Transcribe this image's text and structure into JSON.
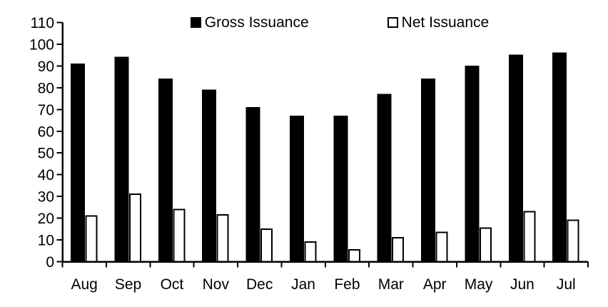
{
  "chart_data": {
    "type": "bar",
    "categories": [
      "Aug",
      "Sep",
      "Oct",
      "Nov",
      "Dec",
      "Jan",
      "Feb",
      "Mar",
      "Apr",
      "May",
      "Jun",
      "Jul"
    ],
    "series": [
      {
        "name": "Gross Issuance",
        "color": "#000000",
        "border": "#000000",
        "values": [
          91,
          94,
          84,
          79,
          71,
          67,
          67,
          77,
          84,
          90,
          95,
          96
        ]
      },
      {
        "name": "Net Issuance",
        "color": "#ffffff",
        "border": "#000000",
        "values": [
          21,
          31,
          24,
          21.5,
          15,
          9,
          5.5,
          11,
          13.5,
          15.5,
          23,
          19
        ]
      }
    ],
    "xlabel": "",
    "ylabel": "",
    "ylim": [
      0,
      110
    ],
    "ytick_step": 10,
    "yticks": [
      0,
      10,
      20,
      30,
      40,
      50,
      60,
      70,
      80,
      90,
      100,
      110
    ],
    "grid": false,
    "legend_position": "top-center",
    "background": "#ffffff",
    "axis_color": "#000000"
  }
}
